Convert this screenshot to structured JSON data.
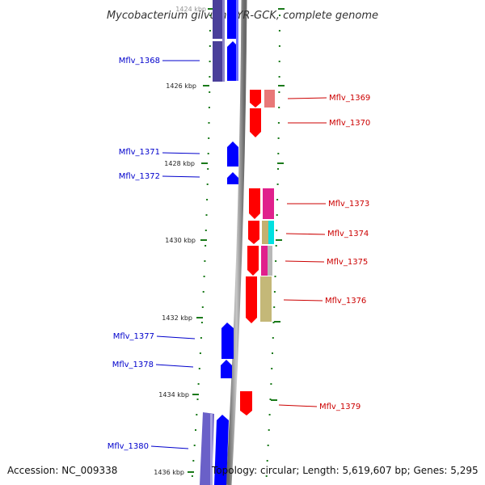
{
  "title": "Mycobacterium gilvum PYR-GCK, complete genome",
  "accession_text": "Accession: NC_009338",
  "topology_text": "Topology: circular; Length: 5,619,607 bp; Genes: 5,295",
  "colors": {
    "forward_label": "#cc0000",
    "reverse_label": "#0000cc",
    "forward_gene": "#ff0000",
    "reverse_gene": "#0000ff",
    "tick": "#1a7a1a",
    "backbone": "#888888"
  },
  "position_ticks": [
    {
      "label": "1424 kbp"
    },
    {
      "label": "1426 kbp"
    },
    {
      "label": "1428 kbp"
    },
    {
      "label": "1430 kbp"
    },
    {
      "label": "1432 kbp"
    },
    {
      "label": "1434 kbp"
    },
    {
      "label": "1436 kbp"
    }
  ],
  "genes": [
    {
      "name": "Mflv_1368",
      "strand": "reverse"
    },
    {
      "name": "Mflv_1369",
      "strand": "forward"
    },
    {
      "name": "Mflv_1370",
      "strand": "forward"
    },
    {
      "name": "Mflv_1371",
      "strand": "reverse"
    },
    {
      "name": "Mflv_1372",
      "strand": "reverse"
    },
    {
      "name": "Mflv_1373",
      "strand": "forward"
    },
    {
      "name": "Mflv_1374",
      "strand": "forward"
    },
    {
      "name": "Mflv_1375",
      "strand": "forward"
    },
    {
      "name": "Mflv_1376",
      "strand": "forward"
    },
    {
      "name": "Mflv_1377",
      "strand": "reverse"
    },
    {
      "name": "Mflv_1378",
      "strand": "reverse"
    },
    {
      "name": "Mflv_1379",
      "strand": "forward"
    },
    {
      "name": "Mflv_1380",
      "strand": "reverse"
    }
  ]
}
